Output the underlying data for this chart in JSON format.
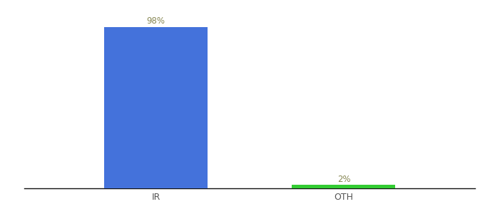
{
  "categories": [
    "IR",
    "OTH"
  ],
  "values": [
    98,
    2
  ],
  "bar_colors": [
    "#4472db",
    "#33cc33"
  ],
  "label_colors": [
    "#888855",
    "#888855"
  ],
  "labels": [
    "98%",
    "2%"
  ],
  "ylim": [
    0,
    108
  ],
  "background_color": "#ffffff",
  "bar_width": 0.55,
  "label_fontsize": 8.5,
  "tick_fontsize": 9,
  "x_positions": [
    1,
    2
  ],
  "xlim": [
    0.3,
    2.7
  ]
}
